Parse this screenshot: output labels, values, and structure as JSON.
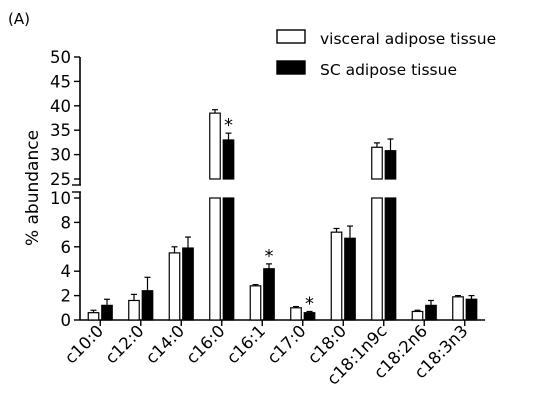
{
  "chart_data": {
    "type": "bar",
    "panel_label": "(A)",
    "title": "",
    "xlabel": "",
    "ylabel": "% abundance",
    "categories": [
      "c10:0",
      "c12:0",
      "c14:0",
      "c16:0",
      "c16:1",
      "c17:0",
      "c18:0",
      "c18:1n9c",
      "c18:2n6",
      "c18:3n3"
    ],
    "axis_break": {
      "lower_range": [
        0,
        10
      ],
      "upper_range": [
        25,
        50
      ]
    },
    "lower_ticks": [
      0,
      2,
      4,
      6,
      8,
      10
    ],
    "upper_ticks": [
      25,
      30,
      35,
      40,
      45,
      50
    ],
    "legend_position": "top-right",
    "grid": false,
    "series": [
      {
        "name": "visceral adipose tissue",
        "fill": "#ffffff",
        "values": [
          0.6,
          1.6,
          5.5,
          38.5,
          2.8,
          1.0,
          7.2,
          31.5,
          0.7,
          1.9
        ],
        "errors": [
          0.2,
          0.5,
          0.5,
          0.7,
          0.1,
          0.1,
          0.3,
          0.9,
          0.1,
          0.1
        ]
      },
      {
        "name": "SC adipose tissue",
        "fill": "#000000",
        "values": [
          1.2,
          2.4,
          5.9,
          33.0,
          4.2,
          0.6,
          6.7,
          30.8,
          1.2,
          1.7
        ],
        "errors": [
          0.5,
          1.1,
          0.9,
          1.4,
          0.4,
          0.1,
          1.0,
          2.4,
          0.4,
          0.3
        ]
      }
    ],
    "significance": [
      {
        "category": "c16:0",
        "series": "SC adipose tissue",
        "label": "*"
      },
      {
        "category": "c16:1",
        "series": "SC adipose tissue",
        "label": "*"
      },
      {
        "category": "c17:0",
        "series": "SC adipose tissue",
        "label": "*"
      }
    ]
  }
}
